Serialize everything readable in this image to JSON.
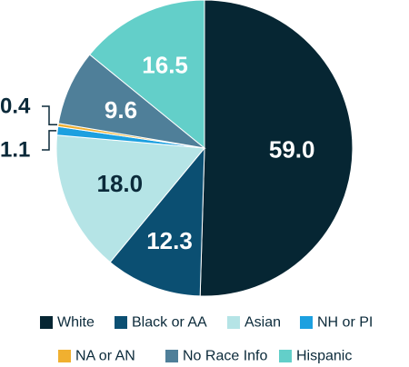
{
  "chart_data": {
    "type": "pie",
    "slices": [
      {
        "name": "White",
        "value": 59.0,
        "label": "59.0",
        "color": "#062633"
      },
      {
        "name": "Black or AA",
        "value": 12.3,
        "label": "12.3",
        "color": "#0b4f72"
      },
      {
        "name": "Asian",
        "value": 18.0,
        "label": "18.0",
        "color": "#b5e4e6"
      },
      {
        "name": "NH or PI",
        "value": 1.1,
        "label": "1.1",
        "color": "#1ca0e0"
      },
      {
        "name": "NA or AN",
        "value": 0.4,
        "label": "0.4",
        "color": "#f0b030"
      },
      {
        "name": "No Race Info",
        "value": 9.6,
        "label": "9.6",
        "color": "#4f7f99"
      },
      {
        "name": "Hispanic",
        "value": 16.5,
        "label": "16.5",
        "color": "#63cfc9"
      }
    ],
    "legend": [
      {
        "name": "White",
        "color": "#062633"
      },
      {
        "name": "Black or AA",
        "color": "#0b4f72"
      },
      {
        "name": "Asian",
        "color": "#b5e4e6"
      },
      {
        "name": "NH or PI",
        "color": "#1ca0e0"
      },
      {
        "name": "NA or AN",
        "color": "#f0b030"
      },
      {
        "name": "No Race Info",
        "color": "#4f7f99"
      },
      {
        "name": "Hispanic",
        "color": "#63cfc9"
      }
    ],
    "legend_position": "bottom"
  }
}
